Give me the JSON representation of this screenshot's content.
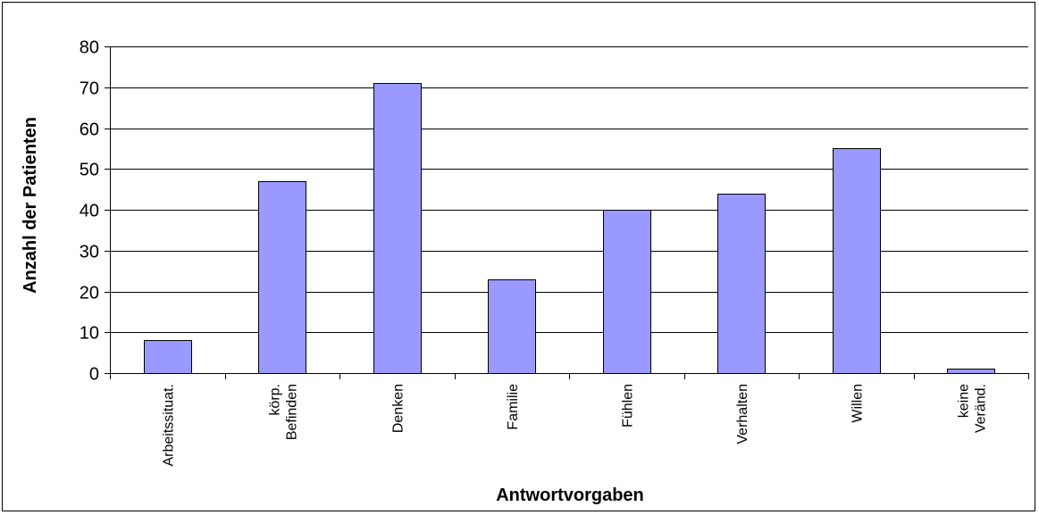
{
  "chart_data": {
    "type": "bar",
    "title": "",
    "xlabel": "Antwortvorgaben",
    "ylabel": "Anzahl der Patienten",
    "ylim": [
      0,
      80
    ],
    "yticks": [
      0,
      10,
      20,
      30,
      40,
      50,
      60,
      70,
      80
    ],
    "grid": true,
    "legend": "none",
    "categories": [
      [
        "Arbeitssituat."
      ],
      [
        "körp.",
        "Befinden"
      ],
      [
        "Denken"
      ],
      [
        "Familie"
      ],
      [
        "Fühlen"
      ],
      [
        "Verhalten"
      ],
      [
        "Willen"
      ],
      [
        "keine",
        "Veränd."
      ]
    ],
    "values": [
      8,
      47,
      71,
      23,
      40,
      44,
      55,
      1
    ],
    "colors": {
      "bar_fill": "#9999ff",
      "bar_stroke": "#000000",
      "grid": "#000000"
    }
  }
}
